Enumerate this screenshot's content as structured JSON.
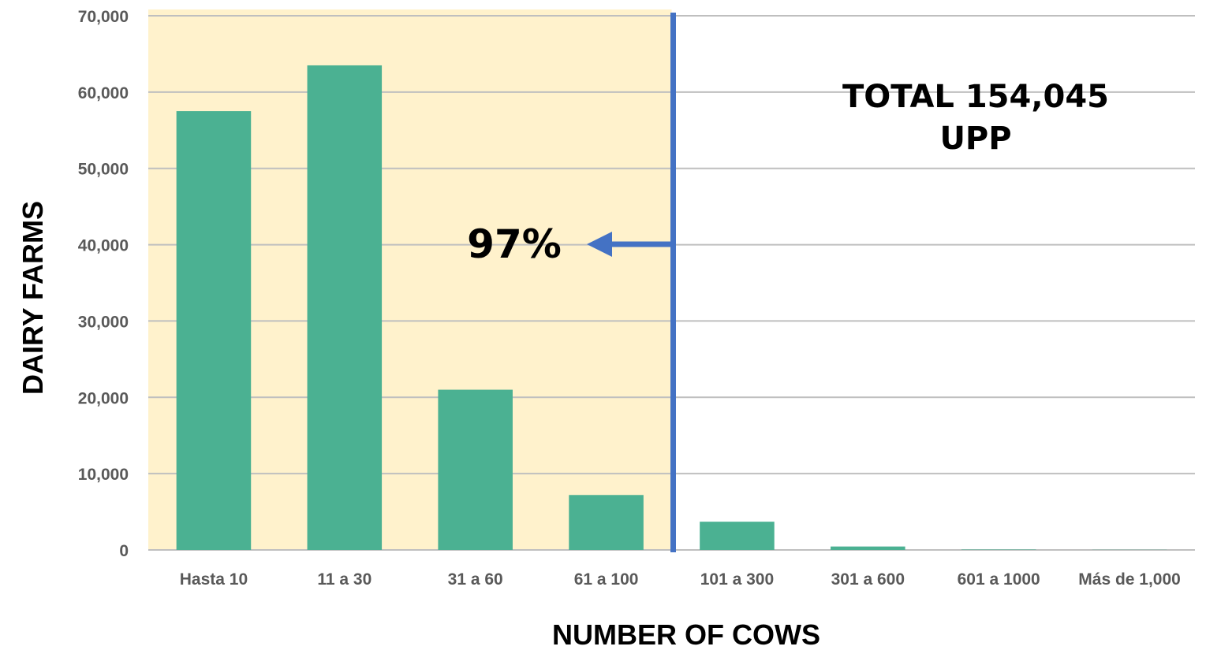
{
  "chart_data": {
    "type": "bar",
    "categories": [
      "Hasta 10",
      "11 a 30",
      "31 a 60",
      "61 a 100",
      "101 a 300",
      "301 a 600",
      "601 a 1000",
      "Más de 1,000"
    ],
    "values": [
      57500,
      63500,
      21000,
      7200,
      3700,
      450,
      50,
      20
    ],
    "xlabel": "NUMBER OF COWS",
    "ylabel": "DAIRY FARMS",
    "ylim": [
      0,
      70000
    ],
    "yticks": [
      0,
      10000,
      20000,
      30000,
      40000,
      50000,
      60000,
      70000
    ],
    "ytick_labels": [
      "0",
      "10,000",
      "20,000",
      "30,000",
      "40,000",
      "50,000",
      "60,000",
      "70,000"
    ],
    "grid": true,
    "highlight": {
      "from_category": 0,
      "to_category": 3,
      "color": "#fff2cc"
    },
    "annotations": {
      "total_line1": "TOTAL 154,045",
      "total_line2": "UPP",
      "percent": "97%"
    },
    "colors": {
      "bar": "#4bb192",
      "divider": "#4472c4",
      "grid": "#bfbfbf"
    }
  }
}
